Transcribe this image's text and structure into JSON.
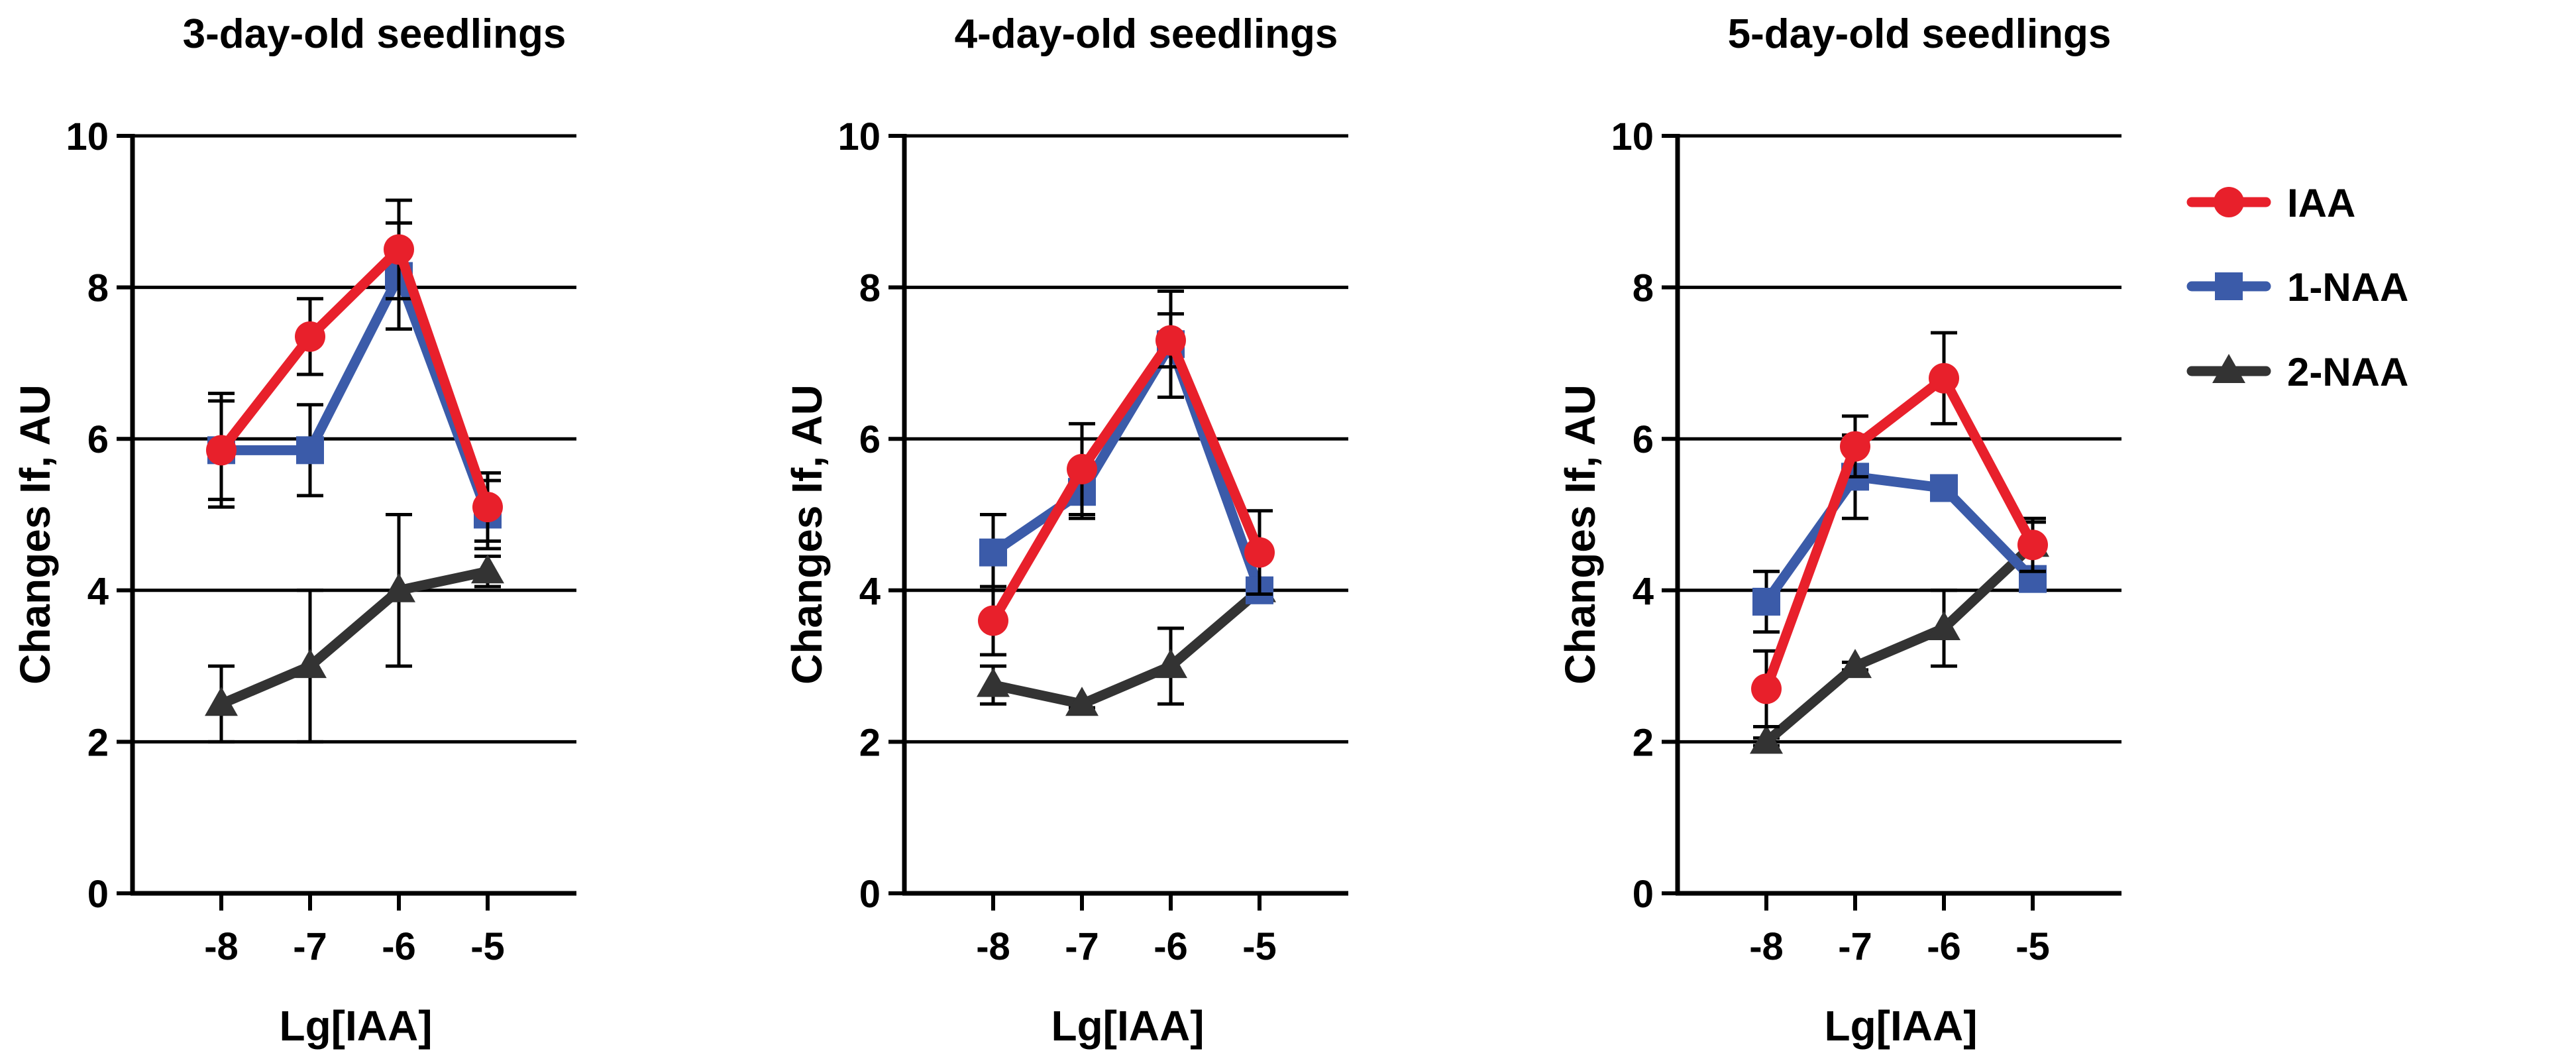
{
  "figure": {
    "xlabel": "Lg[IAA]",
    "ylabel": "Changes If, AU",
    "legend": {
      "position": "right",
      "entries": [
        "IAA",
        "1-NAA",
        "2-NAA"
      ]
    }
  },
  "series_styles": {
    "IAA": {
      "color": "#e8202b",
      "marker": "circle"
    },
    "1-NAA": {
      "color": "#3b5ba9",
      "marker": "square"
    },
    "2-NAA": {
      "color": "#333333",
      "marker": "triangle"
    }
  },
  "chart_data": [
    {
      "type": "line",
      "title": "3-day-old seedlings",
      "xlabel": "Lg[IAA]",
      "ylabel": "Changes If, AU",
      "x": [
        -8,
        -7,
        -6,
        -5
      ],
      "x_tick_labels": [
        "-8",
        "-7",
        "-6",
        "-5"
      ],
      "xlim": [
        -9,
        -4
      ],
      "ylim": [
        0,
        10
      ],
      "y_ticks": [
        0,
        2,
        4,
        6,
        8,
        10
      ],
      "grid": "horizontal",
      "series": [
        {
          "name": "IAA",
          "values": [
            5.85,
            7.35,
            8.5,
            5.1
          ],
          "error": [
            0.65,
            0.5,
            0.65,
            0.45
          ]
        },
        {
          "name": "1-NAA",
          "values": [
            5.85,
            5.85,
            8.15,
            5.0
          ],
          "error": [
            0.75,
            0.6,
            0.7,
            0.45
          ]
        },
        {
          "name": "2-NAA",
          "values": [
            2.5,
            3.0,
            4.0,
            4.25
          ],
          "error": [
            0.5,
            1.0,
            1.0,
            0.2
          ]
        }
      ]
    },
    {
      "type": "line",
      "title": "4-day-old seedlings",
      "xlabel": "Lg[IAA]",
      "ylabel": "Changes If, AU",
      "x": [
        -8,
        -7,
        -6,
        -5
      ],
      "x_tick_labels": [
        "-8",
        "-7",
        "-6",
        "-5"
      ],
      "xlim": [
        -9,
        -4
      ],
      "ylim": [
        0,
        10
      ],
      "y_ticks": [
        0,
        2,
        4,
        6,
        8,
        10
      ],
      "grid": "horizontal",
      "series": [
        {
          "name": "IAA",
          "values": [
            3.6,
            5.6,
            7.3,
            4.5
          ],
          "error": [
            0.45,
            0.6,
            0.35,
            0.55
          ]
        },
        {
          "name": "1-NAA",
          "values": [
            4.5,
            5.3,
            7.25,
            4.0
          ],
          "error": [
            0.5,
            0.35,
            0.7,
            0.05
          ]
        },
        {
          "name": "2-NAA",
          "values": [
            2.75,
            2.5,
            3.0,
            4.0
          ],
          "error": [
            0.25,
            0.05,
            0.5,
            0.1
          ]
        }
      ]
    },
    {
      "type": "line",
      "title": "5-day-old seedlings",
      "xlabel": "Lg[IAA]",
      "ylabel": "Changes If, AU",
      "x": [
        -8,
        -7,
        -6,
        -5
      ],
      "x_tick_labels": [
        "-8",
        "-7",
        "-6",
        "-5"
      ],
      "xlim": [
        -9,
        -4
      ],
      "ylim": [
        0,
        10
      ],
      "y_ticks": [
        0,
        2,
        4,
        6,
        8,
        10
      ],
      "grid": "horizontal",
      "series": [
        {
          "name": "IAA",
          "values": [
            2.7,
            5.9,
            6.8,
            4.6
          ],
          "error": [
            0.5,
            0.4,
            0.6,
            0.35
          ]
        },
        {
          "name": "1-NAA",
          "values": [
            3.85,
            5.5,
            5.35,
            4.15
          ],
          "error": [
            0.4,
            0.55,
            0.15,
            0.1
          ]
        },
        {
          "name": "2-NAA",
          "values": [
            2.0,
            3.0,
            3.5,
            4.6
          ],
          "error": [
            0.05,
            0.05,
            0.5,
            0.3
          ]
        }
      ]
    }
  ]
}
